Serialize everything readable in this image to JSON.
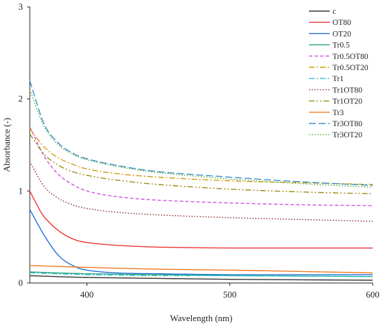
{
  "chart_data": {
    "type": "line",
    "xlabel": "Wavelength (nm)",
    "ylabel": "Absorbance (-)",
    "xlim": [
      360,
      600
    ],
    "ylim": [
      0,
      3
    ],
    "xticks": [
      400,
      500,
      600
    ],
    "yticks": [
      0,
      1,
      2,
      3
    ],
    "grid": false,
    "legend_position": "top-right",
    "series": [
      {
        "name": "c",
        "color": "#333333",
        "dash": "solid",
        "x": [
          360,
          400,
          450,
          500,
          550,
          600
        ],
        "y": [
          0.08,
          0.06,
          0.05,
          0.04,
          0.035,
          0.03
        ]
      },
      {
        "name": "OT80",
        "color": "#ee3333",
        "dash": "solid",
        "x": [
          360,
          365,
          370,
          380,
          390,
          400,
          420,
          450,
          500,
          550,
          600
        ],
        "y": [
          1.0,
          0.85,
          0.72,
          0.57,
          0.48,
          0.44,
          0.41,
          0.39,
          0.38,
          0.38,
          0.38
        ]
      },
      {
        "name": "OT20",
        "color": "#1f6fd8",
        "dash": "solid",
        "x": [
          360,
          370,
          380,
          390,
          400,
          420,
          450,
          500,
          550,
          600
        ],
        "y": [
          0.8,
          0.52,
          0.3,
          0.19,
          0.14,
          0.11,
          0.1,
          0.09,
          0.09,
          0.09
        ]
      },
      {
        "name": "Tr0.5",
        "color": "#2aa57a",
        "dash": "solid",
        "x": [
          360,
          400,
          450,
          500,
          550,
          600
        ],
        "y": [
          0.12,
          0.1,
          0.09,
          0.08,
          0.075,
          0.07
        ]
      },
      {
        "name": "Tr0.5OT80",
        "color": "#cc55dd",
        "dash": "dashed",
        "x": [
          360,
          370,
          380,
          390,
          400,
          420,
          450,
          500,
          550,
          600
        ],
        "y": [
          1.7,
          1.38,
          1.18,
          1.07,
          1.0,
          0.94,
          0.9,
          0.87,
          0.85,
          0.84
        ]
      },
      {
        "name": "Tr0.5OT20",
        "color": "#d49a10",
        "dash": "dashdot",
        "x": [
          360,
          370,
          380,
          390,
          400,
          420,
          450,
          500,
          550,
          600
        ],
        "y": [
          1.68,
          1.48,
          1.36,
          1.29,
          1.24,
          1.19,
          1.15,
          1.11,
          1.09,
          1.07
        ]
      },
      {
        "name": "Tr1",
        "color": "#2ec4d6",
        "dash": "dashdot",
        "x": [
          360,
          400,
          450,
          500,
          550,
          600
        ],
        "y": [
          0.11,
          0.09,
          0.08,
          0.08,
          0.075,
          0.07
        ]
      },
      {
        "name": "Tr1OT80",
        "color": "#8b2323",
        "dash": "dotted",
        "x": [
          360,
          370,
          380,
          390,
          400,
          420,
          450,
          500,
          550,
          600
        ],
        "y": [
          1.32,
          1.05,
          0.92,
          0.85,
          0.81,
          0.77,
          0.74,
          0.71,
          0.69,
          0.67
        ]
      },
      {
        "name": "Tr1OT20",
        "color": "#9a8a14",
        "dash": "dashdotdot",
        "x": [
          360,
          370,
          380,
          390,
          400,
          420,
          450,
          500,
          550,
          600
        ],
        "y": [
          1.62,
          1.4,
          1.28,
          1.21,
          1.17,
          1.12,
          1.07,
          1.02,
          0.99,
          0.97
        ]
      },
      {
        "name": "Tr3",
        "color": "#f07820",
        "dash": "solid",
        "x": [
          360,
          400,
          450,
          500,
          550,
          600
        ],
        "y": [
          0.19,
          0.17,
          0.15,
          0.14,
          0.125,
          0.11
        ]
      },
      {
        "name": "Tr3OT80",
        "color": "#3a8fcf",
        "dash": "longdash",
        "x": [
          360,
          370,
          380,
          390,
          400,
          420,
          450,
          500,
          550,
          600
        ],
        "y": [
          2.2,
          1.73,
          1.52,
          1.41,
          1.35,
          1.28,
          1.21,
          1.15,
          1.1,
          1.06
        ]
      },
      {
        "name": "Tr3OT20",
        "color": "#52a832",
        "dash": "dotted",
        "x": [
          360,
          370,
          380,
          390,
          400,
          420,
          450,
          500,
          550,
          600
        ],
        "y": [
          2.1,
          1.7,
          1.5,
          1.4,
          1.34,
          1.27,
          1.2,
          1.13,
          1.08,
          1.04
        ]
      }
    ]
  }
}
